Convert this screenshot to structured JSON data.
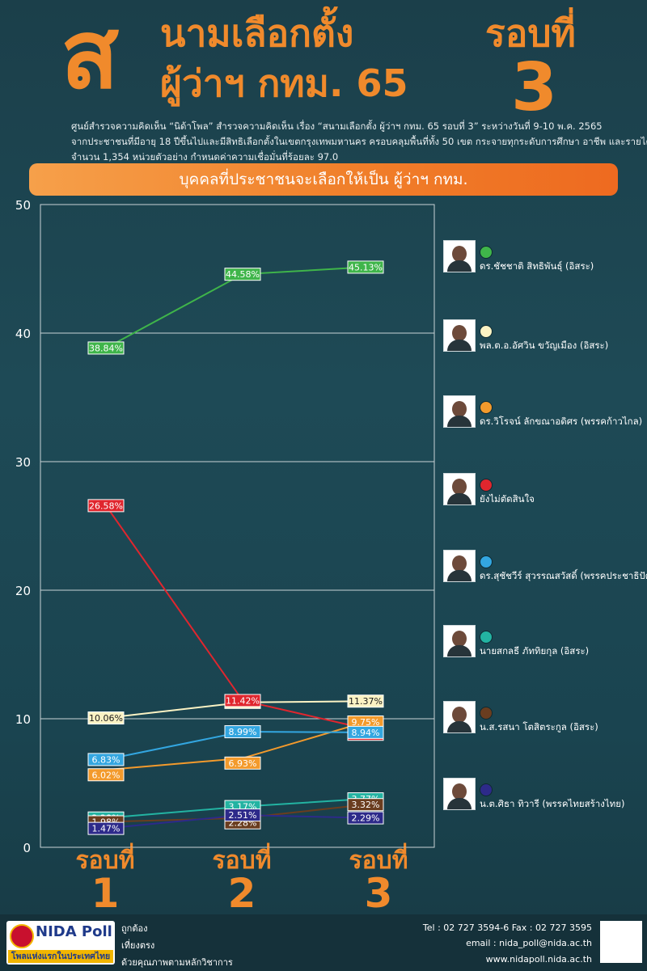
{
  "header": {
    "big_letter": "ส",
    "title_line1": "นามเลือกตั้ง",
    "title_line2": "ผู้ว่าฯ กทม. 65",
    "round_label": "รอบที่",
    "round_number": "3",
    "description": [
      "ศูนย์สำรวจความคิดเห็น “นิด้าโพล” สำรวจความคิดเห็น เรื่อง “สนามเลือกตั้ง ผู้ว่าฯ กทม. 65 รอบที่ 3” ระหว่างวันที่ 9-10 พ.ค. 2565",
      "จากประชาชนที่มีอายุ 18 ปีขึ้นไปและมีสิทธิเลือกตั้งในเขตกรุงเทพมหานคร ครอบคลุมพื้นที่ทั้ง 50 เขต กระจายทุกระดับการศึกษา อาชีพ และรายได้",
      "จำนวน 1,354 หน่วยตัวอย่าง กำหนดค่าความเชื่อมั่นที่ร้อยละ 97.0"
    ],
    "subtitle": "บุคคลที่ประชาชนจะเลือกให้เป็น ผู้ว่าฯ กทม."
  },
  "chart_data": {
    "type": "line",
    "title": "บุคคลที่ประชาชนจะเลือกให้เป็น ผู้ว่าฯ กทม.",
    "categories": [
      "รอบที่ 1",
      "รอบที่ 2",
      "รอบที่ 3"
    ],
    "category_labels": [
      {
        "text": "รอบที่",
        "num": "1"
      },
      {
        "text": "รอบที่",
        "num": "2"
      },
      {
        "text": "รอบที่",
        "num": "3"
      }
    ],
    "ylim": [
      0,
      50
    ],
    "yticks": [
      "0",
      "10",
      "20",
      "30",
      "40",
      "50"
    ],
    "series": [
      {
        "name": "ดร.ชัชชาติ สิทธิพันธุ์ (อิสระ)",
        "color": "#3fb54a",
        "text_color": "#ffffff",
        "values": [
          38.84,
          44.58,
          45.13
        ],
        "labels": [
          "38.84%",
          "44.58%",
          "45.13%"
        ]
      },
      {
        "name": "พล.ต.อ.อัศวิน ขวัญเมือง (อิสระ)",
        "color": "#fbf3c4",
        "text_color": "#1a1a1a",
        "values": [
          10.06,
          11.27,
          11.37
        ],
        "labels": [
          "10.06%",
          "11.27%",
          "11.37%"
        ]
      },
      {
        "name": "ดร.วิโรจน์ ลักขณาอดิศร (พรรคก้าวไกล)",
        "color": "#f39a2c",
        "text_color": "#ffffff",
        "values": [
          6.02,
          6.93,
          9.75
        ],
        "labels": [
          "6.02%",
          "6.93%",
          "9.75%"
        ]
      },
      {
        "name": "ยังไม่ตัดสินใจ",
        "color": "#e0262e",
        "text_color": "#ffffff",
        "values": [
          26.58,
          11.42,
          9.23
        ],
        "labels": [
          "26.58%",
          "11.42%",
          "9.23%"
        ]
      },
      {
        "name": "ดร.สุชัชวีร์ สุวรรณสวัสดิ์ (พรรคประชาธิปัตย์)",
        "color": "#33a6e0",
        "text_color": "#ffffff",
        "values": [
          6.83,
          8.99,
          8.94
        ],
        "labels": [
          "6.83%",
          "8.99%",
          "8.94%"
        ]
      },
      {
        "name": "นายสกลธี ภัททิยกุล (อิสระ)",
        "color": "#23b3a2",
        "text_color": "#ffffff",
        "values": [
          2.28,
          3.17,
          3.77
        ],
        "labels": [
          "2.28%",
          "3.17%",
          "3.77%"
        ]
      },
      {
        "name": "น.ส.รสนา โตสิตระกูล (อิสระ)",
        "color": "#6a3d1f",
        "text_color": "#ffffff",
        "values": [
          1.98,
          2.28,
          3.32
        ],
        "labels": [
          "1.98%",
          "2.28%",
          "3.32%"
        ]
      },
      {
        "name": "น.ต.ศิธา ทิวารี (พรรคไทยสร้างไทย)",
        "color": "#2d2a8a",
        "text_color": "#ffffff",
        "values": [
          1.47,
          2.51,
          2.29
        ],
        "labels": [
          "1.47%",
          "2.51%",
          "2.29%"
        ]
      }
    ]
  },
  "footer": {
    "logo_text": "NIDA Poll",
    "logo_tagline": "โพลแห่งแรกในประเทศไทย",
    "mottos": [
      "ถูกต้อง",
      "เที่ยงตรง",
      "ด้วยคุณภาพตามหลักวิชาการ"
    ],
    "contact_tel": "Tel : 02 727 3594-6 Fax : 02 727 3595",
    "contact_email": "email : nida_poll@nida.ac.th",
    "contact_web": "www.nidapoll.nida.ac.th"
  }
}
